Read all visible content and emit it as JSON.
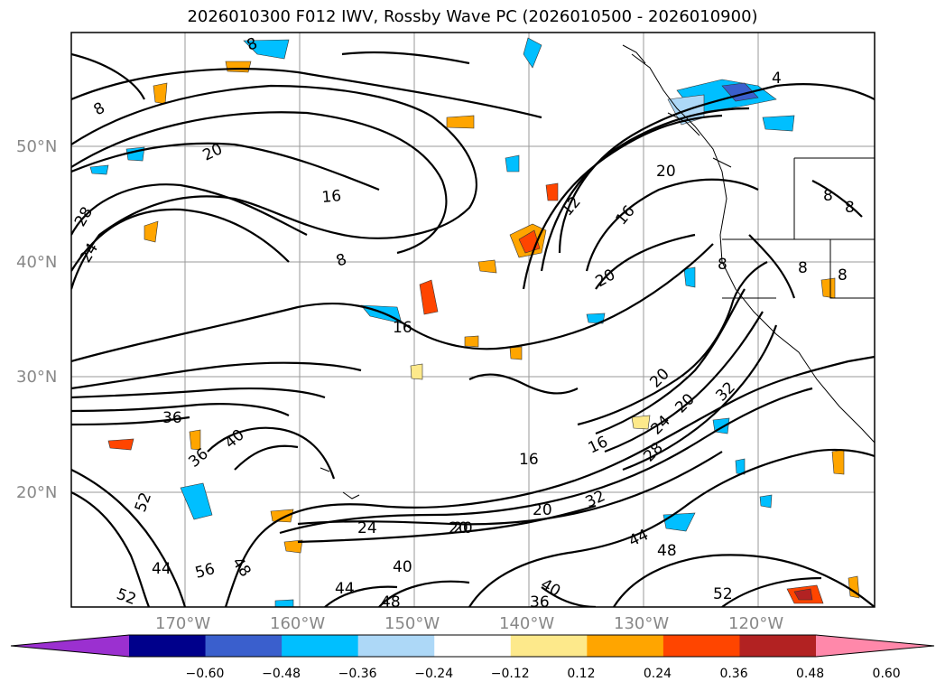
{
  "title": "2026010300 F012 IWV, Rossby Wave PC (2026010500 - 2026010900)",
  "axes": {
    "lat_labels": [
      "50°N",
      "40°N",
      "30°N",
      "20°N"
    ],
    "lon_labels": [
      "170°W",
      "160°W",
      "150°W",
      "140°W",
      "130°W",
      "120°W"
    ]
  },
  "contour_labels": [
    "8",
    "8",
    "4",
    "20",
    "20",
    "16",
    "12",
    "16",
    "28",
    "24",
    "8",
    "8",
    "8",
    "20",
    "20",
    "16",
    "20",
    "20",
    "24",
    "32",
    "36",
    "40",
    "36",
    "16",
    "16",
    "28",
    "32",
    "20",
    "20",
    "24",
    "44",
    "48",
    "44",
    "56",
    "40",
    "48",
    "52",
    "48",
    "52",
    "44",
    "36",
    "40",
    "52",
    "8",
    "8",
    "8"
  ],
  "colorbar": {
    "ticks": [
      "−0.60",
      "−0.48",
      "−0.36",
      "−0.24",
      "−0.12",
      "0.12",
      "0.24",
      "0.36",
      "0.48",
      "0.60"
    ],
    "colors": [
      "#9b30d0",
      "#00008b",
      "#3a5fcd",
      "#00bfff",
      "#add8f7",
      "#ffffff",
      "#fde98b",
      "#ffa500",
      "#ff4500",
      "#b22222",
      "#ff88aa"
    ]
  }
}
